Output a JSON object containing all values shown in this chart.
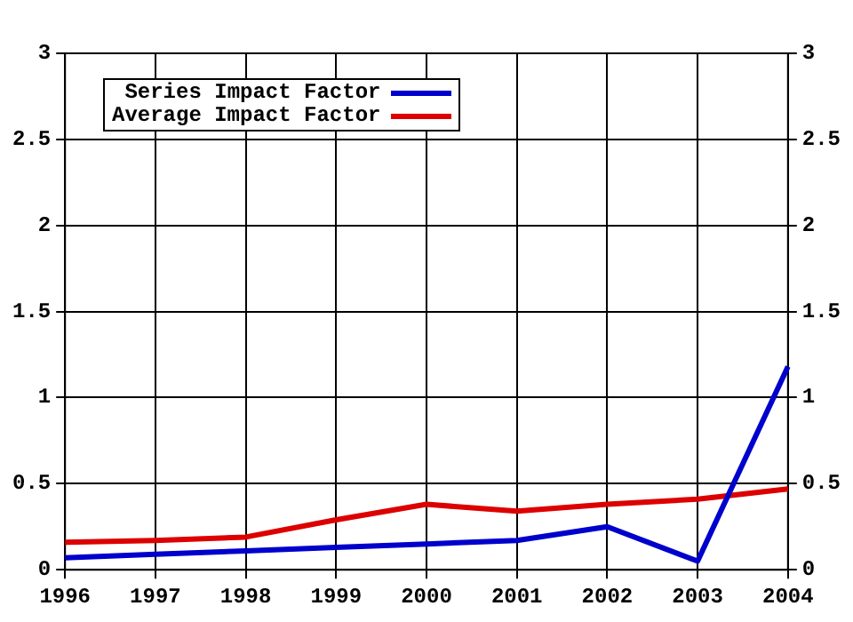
{
  "chart_data": {
    "type": "line",
    "categories": [
      "1996",
      "1997",
      "1998",
      "1999",
      "2000",
      "2001",
      "2002",
      "2003",
      "2004"
    ],
    "series": [
      {
        "name": "Series Impact Factor",
        "color": "#0000cc",
        "values": [
          0.07,
          0.09,
          0.11,
          0.13,
          0.15,
          0.17,
          0.25,
          0.05,
          1.18
        ]
      },
      {
        "name": "Average Impact Factor",
        "color": "#dd0000",
        "values": [
          0.16,
          0.17,
          0.19,
          0.29,
          0.38,
          0.34,
          0.38,
          0.41,
          0.47
        ]
      }
    ],
    "ylim": [
      0,
      3
    ],
    "yticks": [
      0,
      0.5,
      1,
      1.5,
      2,
      2.5,
      3
    ],
    "y2lim": [
      0,
      3
    ],
    "y2ticks": [
      0,
      0.5,
      1,
      1.5,
      2,
      2.5,
      3
    ],
    "grid": true,
    "legend": "top left",
    "marker": "none",
    "line_style": "solid"
  }
}
